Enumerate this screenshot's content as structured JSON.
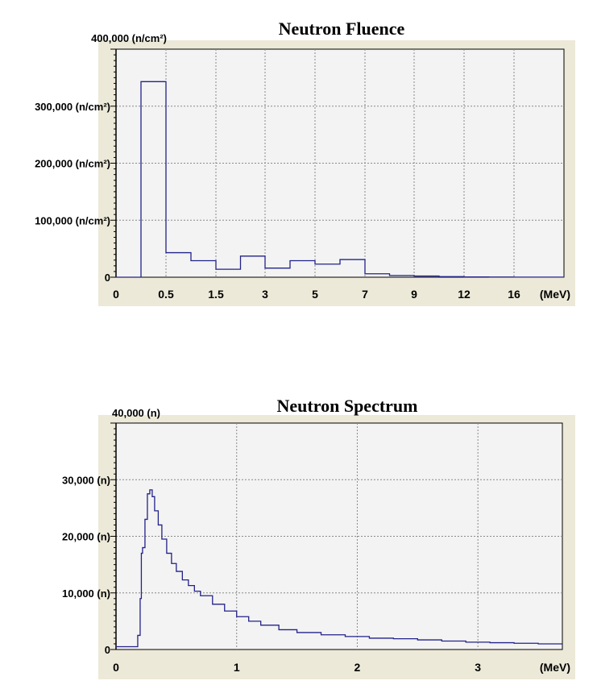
{
  "chart_data": [
    {
      "type": "line",
      "step": true,
      "title": "Neutron Fluence",
      "ylim": [
        0,
        400000
      ],
      "y_ticks": [
        {
          "value": 0,
          "label": "0"
        },
        {
          "value": 100000,
          "label": "100,000 (n/cm²)"
        },
        {
          "value": 200000,
          "label": "200,000 (n/cm²)"
        },
        {
          "value": 300000,
          "label": "300,000 (n/cm²)"
        },
        {
          "value": 400000,
          "label": "400,000 (n/cm²)"
        }
      ],
      "x_tick_labels": [
        "0",
        "0.5",
        "1.5",
        "3",
        "5",
        "7",
        "9",
        "12",
        "16",
        "(MeV)"
      ],
      "bins": [
        {
          "from": "0",
          "to": "0.25",
          "value": 0
        },
        {
          "from": "0.25",
          "to": "0.5",
          "value": 343000
        },
        {
          "from": "0.5",
          "to": "1",
          "value": 43000
        },
        {
          "from": "1",
          "to": "1.5",
          "value": 29000
        },
        {
          "from": "1.5",
          "to": "2",
          "value": 14000
        },
        {
          "from": "2",
          "to": "3",
          "value": 37000
        },
        {
          "from": "3",
          "to": "4",
          "value": 16000
        },
        {
          "from": "4",
          "to": "5",
          "value": 29000
        },
        {
          "from": "5",
          "to": "6",
          "value": 23000
        },
        {
          "from": "6",
          "to": "7",
          "value": 31000
        },
        {
          "from": "7",
          "to": "8",
          "value": 6000
        },
        {
          "from": "8",
          "to": "9",
          "value": 3000
        },
        {
          "from": "9",
          "to": "10",
          "value": 2000
        },
        {
          "from": "10",
          "to": "12",
          "value": 1000
        },
        {
          "from": "12",
          "to": "14",
          "value": 500
        },
        {
          "from": "14",
          "to": "16",
          "value": 300
        },
        {
          "from": "16",
          "to": "20",
          "value": 200
        }
      ],
      "grid": true
    },
    {
      "type": "line",
      "title": "Neutron Spectrum",
      "xlim": [
        0,
        3.7
      ],
      "ylim": [
        0,
        40000
      ],
      "y_ticks": [
        {
          "value": 0,
          "label": "0"
        },
        {
          "value": 10000,
          "label": "10,000 (n)"
        },
        {
          "value": 20000,
          "label": "20,000 (n)"
        },
        {
          "value": 30000,
          "label": "30,000 (n)"
        },
        {
          "value": 40000,
          "label": "40,000 (n)"
        }
      ],
      "x_ticks": [
        {
          "value": 0,
          "label": "0"
        },
        {
          "value": 1,
          "label": "1"
        },
        {
          "value": 2,
          "label": "2"
        },
        {
          "value": 3,
          "label": "3"
        }
      ],
      "x_unit_label": "(MeV)",
      "x": [
        0,
        0.17,
        0.18,
        0.2,
        0.21,
        0.22,
        0.24,
        0.26,
        0.28,
        0.3,
        0.32,
        0.35,
        0.38,
        0.42,
        0.46,
        0.5,
        0.55,
        0.6,
        0.65,
        0.7,
        0.8,
        0.9,
        1.0,
        1.1,
        1.2,
        1.35,
        1.5,
        1.7,
        1.9,
        2.1,
        2.3,
        2.5,
        2.7,
        2.9,
        3.1,
        3.3,
        3.5,
        3.7
      ],
      "y": [
        500,
        500,
        2500,
        9000,
        17000,
        18000,
        23000,
        27500,
        28200,
        27000,
        24500,
        22000,
        19500,
        17000,
        15200,
        13800,
        12300,
        11300,
        10300,
        9500,
        8000,
        6800,
        5800,
        5000,
        4300,
        3500,
        3000,
        2600,
        2300,
        2000,
        1900,
        1700,
        1500,
        1300,
        1200,
        1100,
        1000,
        900
      ],
      "grid": true
    }
  ]
}
